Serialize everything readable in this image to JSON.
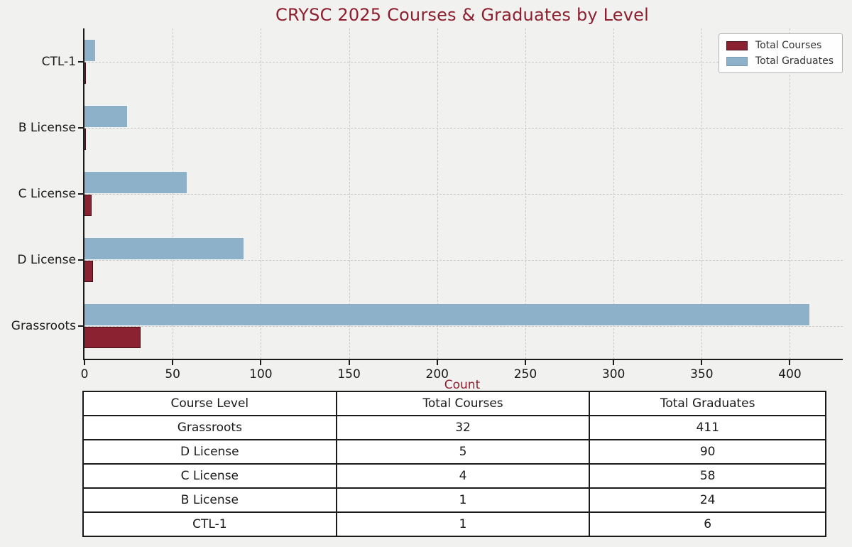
{
  "title": "CRYSC 2025 Courses & Graduates by Level",
  "chart_data": {
    "type": "bar",
    "orientation": "horizontal",
    "title": "CRYSC 2025 Courses & Graduates by Level",
    "categories": [
      "CTL-1",
      "B License",
      "C License",
      "D License",
      "Grassroots"
    ],
    "category_order": "top to bottom",
    "series": [
      {
        "name": "Total Courses",
        "color": "#8b2232",
        "edge_color": "#47101b",
        "values": [
          1,
          1,
          4,
          5,
          32
        ]
      },
      {
        "name": "Total Graduates",
        "color": "#8db1c8",
        "edge_color": "#7a9cb2",
        "values": [
          6,
          24,
          58,
          90,
          411
        ]
      }
    ],
    "xlabel": "Count",
    "ylabel": "",
    "xlim": [
      0,
      430
    ],
    "xticks": [
      0,
      50,
      100,
      150,
      200,
      250,
      300,
      350,
      400
    ],
    "grid": "dashed, both axes",
    "legend_position": "upper right"
  },
  "legend": {
    "items": [
      {
        "label": "Total Courses"
      },
      {
        "label": "Total Graduates"
      }
    ]
  },
  "table": {
    "headers": [
      "Course Level",
      "Total Courses",
      "Total Graduates"
    ],
    "rows": [
      [
        "Grassroots",
        "32",
        "411"
      ],
      [
        "D License",
        "5",
        "90"
      ],
      [
        "C License",
        "4",
        "58"
      ],
      [
        "B License",
        "1",
        "24"
      ],
      [
        "CTL-1",
        "1",
        "6"
      ]
    ]
  },
  "colors": {
    "figure_background": "#f1f1ef",
    "title_text": "#8e1f2f",
    "axis_label_text": "#8e1f2f",
    "axis_spine": "#1a1a1a",
    "gridline": "#c9c9c9",
    "tick_text": "#1a1a1a",
    "legend_border": "#b3b3b3",
    "legend_background": "#fefefe",
    "table_border": "#1a1a1a",
    "table_background": "#ffffff"
  }
}
